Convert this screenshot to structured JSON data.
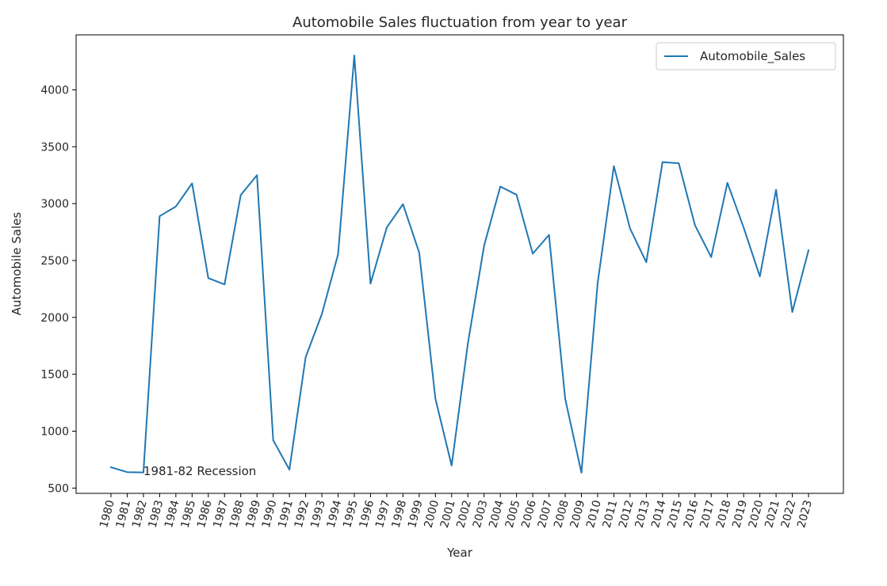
{
  "chart_data": {
    "type": "line",
    "title": "Automobile Sales fluctuation from year to year",
    "xlabel": "Year",
    "ylabel": "Automobile Sales",
    "x": [
      1980,
      1981,
      1982,
      1983,
      1984,
      1985,
      1986,
      1987,
      1988,
      1989,
      1990,
      1991,
      1992,
      1993,
      1994,
      1995,
      1996,
      1997,
      1998,
      1999,
      2000,
      2001,
      2002,
      2003,
      2004,
      2005,
      2006,
      2007,
      2008,
      2009,
      2010,
      2011,
      2012,
      2013,
      2014,
      2015,
      2016,
      2017,
      2018,
      2019,
      2020,
      2021,
      2022,
      2023
    ],
    "series": [
      {
        "name": "Automobile_Sales",
        "color": "#1f77b4",
        "values": [
          683,
          640,
          637,
          2890,
          2975,
          3178,
          2345,
          2290,
          3076,
          3250,
          921,
          662,
          1650,
          2030,
          2555,
          4302,
          2297,
          2790,
          2995,
          2570,
          1285,
          698,
          1770,
          2630,
          3150,
          3078,
          2560,
          2725,
          1285,
          635,
          2300,
          3330,
          2780,
          2485,
          3365,
          3355,
          2810,
          2530,
          3183,
          2790,
          2360,
          3122,
          2047,
          2590
        ]
      }
    ],
    "xticks": [
      "1980",
      "1981",
      "1982",
      "1983",
      "1984",
      "1985",
      "1986",
      "1987",
      "1988",
      "1989",
      "1990",
      "1991",
      "1992",
      "1993",
      "1994",
      "1995",
      "1996",
      "1997",
      "1998",
      "1999",
      "2000",
      "2001",
      "2002",
      "2003",
      "2004",
      "2005",
      "2006",
      "2007",
      "2008",
      "2009",
      "2010",
      "2011",
      "2012",
      "2013",
      "2014",
      "2015",
      "2016",
      "2017",
      "2018",
      "2019",
      "2020",
      "2021",
      "2022",
      "2023"
    ],
    "yticks": [
      500,
      1000,
      1500,
      2000,
      2500,
      3000,
      3500,
      4000
    ],
    "ytick_labels": [
      "500",
      "1000",
      "1500",
      "2000",
      "2500",
      "3000",
      "3500",
      "4000"
    ],
    "xlim": [
      1977.85,
      2025.15
    ],
    "ylim": [
      453.65,
      4483.35
    ],
    "grid": false,
    "legend_position": "upper right",
    "annotations": [
      {
        "text": "1981-82 Recession",
        "x": 1982,
        "y": 650
      }
    ]
  }
}
